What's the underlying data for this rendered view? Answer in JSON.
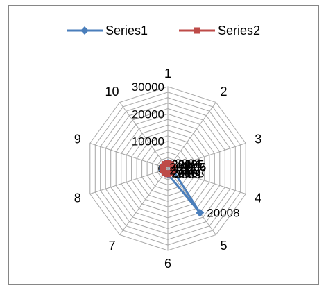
{
  "chart_data": {
    "type": "radar",
    "categories": [
      "1",
      "2",
      "3",
      "4",
      "5",
      "6",
      "7",
      "8",
      "9",
      "10"
    ],
    "series": [
      {
        "name": "Series1",
        "color": "#4a7ebb",
        "values": [
          2004,
          2005,
          2006,
          2007,
          20008,
          2009,
          2010,
          2011,
          2012,
          2013
        ]
      },
      {
        "name": "Series2",
        "color": "#be4b48",
        "values": [
          2004,
          2005,
          2006,
          2007,
          2008,
          2009,
          2010,
          2011,
          2012,
          2013
        ]
      }
    ],
    "radial_ticks": [
      "0",
      "10000",
      "20000",
      "30000"
    ],
    "rmax": 30000,
    "gridlines": 15,
    "legend_position": "top",
    "grid_color": "#a6a6a6"
  }
}
